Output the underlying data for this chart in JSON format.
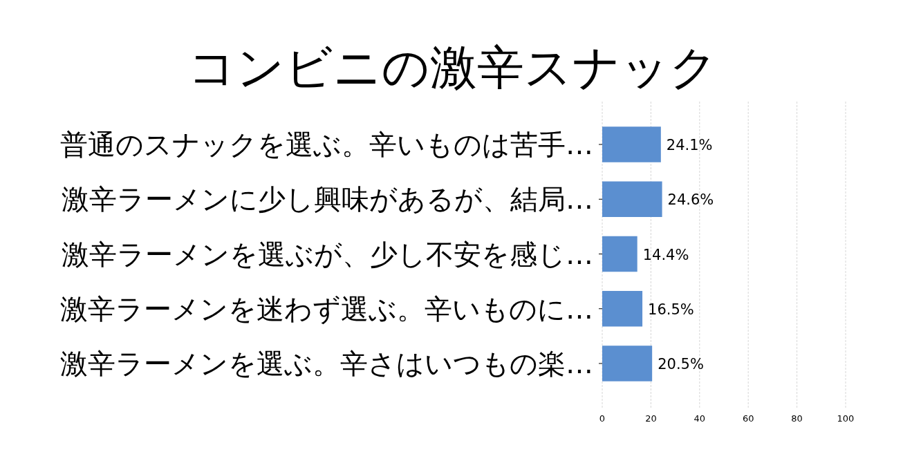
{
  "chart_data": {
    "type": "bar",
    "orientation": "horizontal",
    "title": "コンビニの激辛スナック",
    "categories": [
      "普通のスナックを選ぶ。辛いものは苦手…",
      "激辛ラーメンに少し興味があるが、結局…",
      "激辛ラーメンを選ぶが、少し不安を感じ…",
      "激辛ラーメンを迷わず選ぶ。辛いものに…",
      "激辛ラーメンを選ぶ。辛さはいつもの楽…"
    ],
    "values": [
      24.1,
      24.6,
      14.4,
      16.5,
      20.5
    ],
    "value_labels": [
      "24.1%",
      "24.6%",
      "14.4%",
      "16.5%",
      "20.5%"
    ],
    "color": "#5b8fd0",
    "xlim": [
      0,
      100
    ],
    "xticks": [
      0,
      20,
      40,
      60,
      80,
      100
    ],
    "grid": "x"
  }
}
